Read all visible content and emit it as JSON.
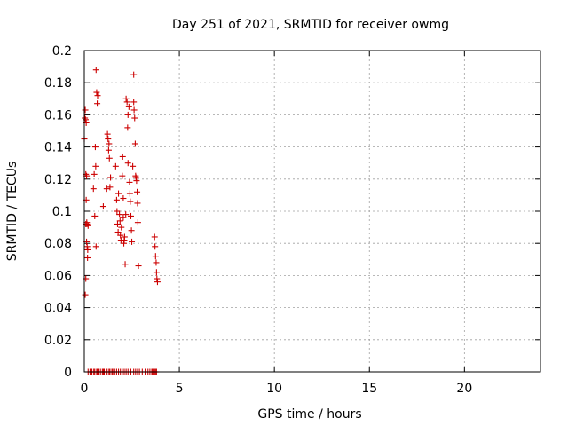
{
  "chart_data": {
    "type": "scatter",
    "title": "Day 251 of 2021, SRMTID for receiver owmg",
    "xlabel": "GPS time / hours",
    "ylabel": "SRMTID / TECUs",
    "xlim": [
      0,
      24
    ],
    "ylim": [
      0,
      0.2
    ],
    "xticks": [
      0,
      5,
      10,
      15,
      20
    ],
    "xtick_labels": [
      "0",
      "5",
      "10",
      "15",
      "20"
    ],
    "yticks": [
      0,
      0.02,
      0.04,
      0.06,
      0.08,
      0.1,
      0.12,
      0.14,
      0.16,
      0.18,
      0.2
    ],
    "ytick_labels": [
      "0",
      "0.02",
      "0.04",
      "0.06",
      "0.08",
      "0.1",
      "0.12",
      "0.14",
      "0.16",
      "0.18",
      "0.2"
    ],
    "grid": true,
    "marker": "plus",
    "color": "#cc0000",
    "series": [
      {
        "x": [
          0.0,
          0.03,
          0.05,
          0.05,
          0.07,
          0.08,
          0.08,
          0.08,
          0.1,
          0.1,
          0.12,
          0.12,
          0.13,
          0.14,
          0.15,
          0.17,
          0.18,
          0.2,
          0.48,
          0.52,
          0.55,
          0.58,
          0.6,
          0.62,
          0.62,
          0.65,
          0.68,
          0.7,
          1.0,
          1.18,
          1.22,
          1.25,
          1.28,
          1.3,
          1.32,
          1.35,
          1.38,
          1.65,
          1.7,
          1.72,
          1.75,
          1.78,
          1.8,
          1.85,
          1.88,
          1.9,
          1.93,
          1.95,
          2.0,
          2.02,
          2.05,
          2.05,
          2.08,
          2.1,
          2.12,
          2.15,
          2.18,
          2.2,
          2.25,
          2.28,
          2.3,
          2.3,
          2.35,
          2.38,
          2.4,
          2.42,
          2.45,
          2.48,
          2.5,
          2.55,
          2.6,
          2.6,
          2.62,
          2.65,
          2.68,
          2.7,
          2.72,
          2.75,
          2.78,
          2.8,
          2.82,
          2.85,
          3.7,
          3.72,
          3.75,
          3.78,
          3.8,
          3.82,
          3.85
        ],
        "y": [
          0.145,
          0.158,
          0.048,
          0.163,
          0.157,
          0.123,
          0.092,
          0.058,
          0.155,
          0.107,
          0.122,
          0.081,
          0.093,
          0.092,
          0.078,
          0.071,
          0.076,
          0.091,
          0.114,
          0.123,
          0.097,
          0.14,
          0.128,
          0.078,
          0.188,
          0.174,
          0.167,
          0.172,
          0.103,
          0.114,
          0.148,
          0.145,
          0.138,
          0.142,
          0.133,
          0.115,
          0.121,
          0.128,
          0.107,
          0.1,
          0.092,
          0.087,
          0.111,
          0.098,
          0.094,
          0.085,
          0.082,
          0.09,
          0.122,
          0.134,
          0.108,
          0.096,
          0.08,
          0.082,
          0.084,
          0.067,
          0.098,
          0.17,
          0.168,
          0.152,
          0.16,
          0.13,
          0.165,
          0.118,
          0.111,
          0.106,
          0.097,
          0.088,
          0.081,
          0.128,
          0.185,
          0.168,
          0.163,
          0.158,
          0.142,
          0.122,
          0.121,
          0.119,
          0.112,
          0.105,
          0.093,
          0.066,
          0.084,
          0.078,
          0.072,
          0.068,
          0.062,
          0.058,
          0.056
        ]
      },
      {
        "x": [
          0.2,
          0.3,
          0.35,
          0.4,
          0.5,
          0.55,
          0.65,
          0.7,
          0.75,
          0.85,
          0.95,
          1.0,
          1.05,
          1.15,
          1.2,
          1.3,
          1.35,
          1.45,
          1.5,
          1.6,
          1.7,
          1.8,
          1.9,
          2.0,
          2.1,
          2.2,
          2.3,
          2.45,
          2.6,
          2.7,
          2.8,
          2.9,
          3.05,
          3.2,
          3.35,
          3.45,
          3.55,
          3.6,
          3.65,
          3.7,
          3.75,
          3.8
        ],
        "y": [
          0,
          0,
          0,
          0,
          0,
          0,
          0,
          0,
          0,
          0,
          0,
          0,
          0,
          0,
          0,
          0,
          0,
          0,
          0,
          0,
          0,
          0,
          0,
          0,
          0,
          0,
          0,
          0,
          0,
          0,
          0,
          0,
          0,
          0,
          0,
          0,
          0,
          0,
          0,
          0,
          0,
          0
        ]
      }
    ]
  }
}
